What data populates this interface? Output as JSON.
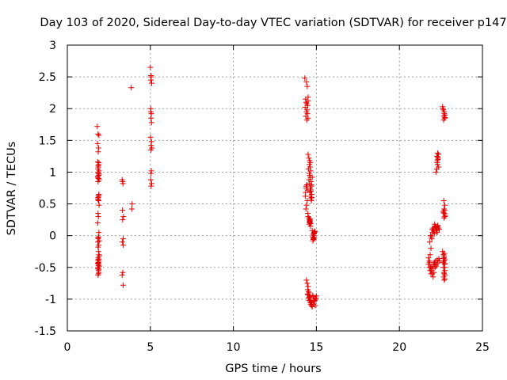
{
  "chart_data": {
    "type": "scatter",
    "title": "Day 103 of 2020, Sidereal Day-to-day VTEC variation (SDTVAR) for receiver p147",
    "xlabel": "GPS time / hours",
    "ylabel": "SDTVAR / TECUs",
    "xlim": [
      0,
      25
    ],
    "ylim": [
      -1.5,
      3
    ],
    "xticks": [
      0,
      5,
      10,
      15,
      20,
      25
    ],
    "yticks": [
      -1.5,
      -1,
      -0.5,
      0,
      0.5,
      1,
      1.5,
      2,
      2.5,
      3
    ],
    "xtick_labels": [
      "0",
      "5",
      "10",
      "15",
      "20",
      "25"
    ],
    "ytick_labels": [
      "-1.5",
      "-1",
      "-0.5",
      "0",
      "0.5",
      "1",
      "1.5",
      "2",
      "2.5",
      "3"
    ],
    "grid": true,
    "marker": "+",
    "color": "#e00000",
    "series": [
      {
        "name": "p147",
        "x": [
          1.8,
          1.85,
          1.9,
          1.82,
          1.88,
          1.86,
          1.83,
          1.9,
          1.87,
          1.84,
          1.91,
          1.86,
          1.89,
          1.83,
          1.87,
          1.92,
          1.85,
          1.9,
          1.88,
          1.86,
          1.84,
          1.89,
          1.91,
          1.85,
          1.87,
          1.83,
          1.9,
          1.88,
          1.86,
          1.92,
          1.84,
          1.89,
          1.85,
          1.88,
          1.91,
          1.86,
          1.83,
          1.9,
          1.87,
          1.85,
          1.89,
          1.92,
          1.86,
          1.84,
          1.88,
          1.9,
          1.87,
          1.85,
          1.89,
          1.86,
          1.83,
          1.91,
          1.88,
          1.86,
          1.9,
          1.84,
          1.87,
          1.89,
          1.85,
          1.92,
          1.88,
          1.86,
          3.3,
          3.35,
          3.32,
          3.38,
          3.33,
          3.36,
          3.31,
          3.37,
          3.34,
          3.3,
          3.36,
          3.33,
          3.85,
          3.9,
          3.88,
          5.0,
          5.05,
          5.03,
          5.08,
          5.02,
          5.06,
          5.04,
          5.07,
          5.01,
          5.05,
          5.09,
          5.03,
          5.06,
          5.04,
          5.02,
          5.08,
          5.05,
          5.03,
          5.07,
          5.04,
          14.3,
          14.4,
          14.45,
          14.35,
          14.5,
          14.42,
          14.38,
          14.48,
          14.32,
          14.44,
          14.4,
          14.46,
          14.36,
          14.5,
          14.42,
          14.38,
          14.47,
          14.33,
          14.45,
          14.41,
          14.37,
          14.49,
          14.43,
          14.39,
          14.5,
          14.35,
          14.5,
          14.55,
          14.6,
          14.58,
          14.62,
          14.52,
          14.65,
          14.57,
          14.6,
          14.63,
          14.55,
          14.68,
          14.58,
          14.7,
          14.62,
          14.66,
          14.6,
          14.72,
          14.65,
          14.68,
          14.7,
          14.63,
          14.75,
          14.67,
          14.72,
          14.7,
          14.5,
          14.55,
          14.58,
          14.6,
          14.62,
          14.57,
          14.65,
          14.6,
          14.63,
          14.58,
          14.66,
          14.61,
          14.75,
          14.8,
          14.78,
          14.82,
          14.85,
          14.79,
          14.83,
          14.87,
          14.81,
          14.9,
          14.84,
          14.88,
          14.86,
          14.92,
          14.4,
          14.45,
          14.5,
          14.48,
          14.52,
          14.55,
          14.47,
          14.58,
          14.53,
          14.6,
          14.56,
          14.62,
          14.5,
          14.65,
          14.58,
          14.7,
          14.62,
          14.75,
          14.68,
          14.8,
          14.72,
          14.85,
          14.78,
          14.9,
          14.82,
          14.95,
          14.88,
          15.0,
          14.93,
          14.98,
          21.75,
          21.8,
          21.85,
          21.9,
          21.82,
          21.95,
          21.88,
          22.0,
          21.93,
          22.05,
          21.98,
          22.1,
          22.03,
          22.15,
          22.08,
          22.2,
          22.12,
          22.25,
          22.18,
          22.3,
          22.22,
          22.35,
          22.28,
          22.4,
          22.32,
          21.75,
          21.82,
          21.88,
          21.93,
          21.98,
          22.03,
          22.08,
          22.12,
          22.18,
          22.22,
          22.28,
          22.32,
          22.38,
          22.42,
          21.8,
          21.85,
          21.9,
          21.95,
          22.0,
          22.05,
          22.1,
          22.15,
          22.2,
          22.2,
          22.25,
          22.3,
          22.28,
          22.33,
          22.26,
          22.35,
          22.3,
          22.32,
          22.27,
          22.36,
          22.31,
          22.6,
          22.65,
          22.7,
          22.68,
          22.72,
          22.66,
          22.74,
          22.7,
          22.62,
          22.75,
          22.67,
          22.73,
          22.69,
          22.64,
          22.71,
          22.76,
          22.68,
          22.72,
          22.66,
          22.74,
          22.6,
          22.65,
          22.7,
          22.68,
          22.72,
          22.66,
          22.74,
          22.7,
          22.67,
          22.73,
          22.69,
          22.75,
          22.71,
          22.64,
          22.72,
          22.68,
          22.74,
          22.7,
          22.66,
          22.73
        ],
        "y": [
          1.72,
          1.6,
          1.58,
          1.45,
          1.38,
          1.32,
          1.16,
          1.15,
          1.1,
          1.05,
          1.02,
          0.98,
          0.95,
          0.92,
          0.9,
          0.88,
          0.85,
          0.65,
          0.62,
          0.6,
          0.58,
          0.55,
          0.48,
          0.35,
          0.3,
          0.2,
          0.05,
          -0.02,
          -0.05,
          -0.08,
          -0.1,
          -0.15,
          -0.18,
          -0.25,
          -0.3,
          -0.35,
          -0.38,
          -0.4,
          -0.42,
          -0.44,
          -0.45,
          -0.48,
          -0.5,
          -0.52,
          -0.55,
          -0.58,
          -0.6,
          -0.62,
          1.12,
          1.08,
          0.93,
          0.97,
          0.63,
          0.56,
          -0.37,
          -0.43,
          -0.47,
          -0.53,
          -0.03,
          -0.32,
          0.9,
          1.0,
          0.88,
          0.82,
          0.4,
          0.3,
          0.25,
          -0.05,
          -0.1,
          -0.15,
          -0.58,
          -0.62,
          -0.78,
          0.85,
          2.33,
          0.5,
          0.42,
          2.65,
          2.5,
          2.45,
          2.4,
          2.0,
          1.92,
          1.85,
          1.78,
          1.55,
          1.42,
          1.38,
          1.35,
          1.02,
          0.98,
          0.88,
          0.82,
          0.78,
          1.95,
          1.48,
          2.52,
          2.48,
          2.42,
          2.35,
          2.15,
          2.12,
          2.08,
          2.1,
          2.05,
          2.02,
          1.98,
          1.95,
          1.92,
          1.88,
          1.85,
          1.82,
          0.78,
          0.72,
          0.62,
          0.55,
          0.48,
          0.42,
          0.35,
          0.8,
          0.75,
          2.18,
          0.68,
          1.28,
          1.22,
          1.18,
          1.12,
          1.08,
          1.05,
          1.02,
          0.98,
          0.95,
          0.92,
          0.88,
          0.85,
          0.82,
          0.78,
          0.75,
          0.72,
          0.68,
          0.65,
          0.62,
          0.58,
          0.55,
          1.15,
          0.92,
          0.7,
          0.6,
          0.8,
          0.3,
          0.28,
          0.25,
          0.22,
          0.2,
          0.18,
          0.15,
          0.24,
          0.26,
          0.21,
          0.19,
          0.23,
          0.08,
          0.02,
          -0.02,
          -0.05,
          0.05,
          -0.08,
          -0.03,
          0.04,
          -0.06,
          0.07,
          0.0,
          -0.04,
          0.03,
          0.06,
          -0.7,
          -0.75,
          -0.8,
          -0.85,
          -0.88,
          -0.9,
          -0.92,
          -0.95,
          -0.98,
          -1.0,
          -1.02,
          -1.05,
          -0.93,
          -1.08,
          -0.97,
          -1.1,
          -1.0,
          -1.12,
          -1.04,
          -0.96,
          -1.06,
          -1.0,
          -0.94,
          -1.02,
          -1.08,
          -0.98,
          -1.03,
          -0.95,
          -1.1,
          -1.0,
          -0.45,
          -0.4,
          -0.3,
          -0.2,
          -0.1,
          -0.05,
          0.0,
          0.05,
          -0.02,
          0.08,
          0.1,
          0.03,
          0.12,
          0.15,
          0.07,
          0.13,
          0.18,
          0.1,
          0.14,
          0.16,
          0.08,
          0.12,
          0.05,
          0.1,
          0.15,
          -0.35,
          -0.42,
          -0.5,
          -0.55,
          -0.6,
          -0.65,
          -0.58,
          -0.45,
          -0.4,
          -0.48,
          -0.38,
          -0.43,
          -0.36,
          -0.4,
          -0.5,
          -0.55,
          -0.6,
          -0.48,
          -0.52,
          -0.45,
          -0.42,
          -0.5,
          -0.46,
          1.0,
          1.05,
          1.12,
          1.18,
          1.22,
          1.25,
          1.28,
          1.3,
          1.2,
          1.15,
          1.08,
          1.24,
          2.03,
          1.98,
          1.92,
          1.88,
          1.85,
          1.82,
          1.9,
          1.95,
          2.0,
          1.86,
          0.55,
          0.48,
          0.42,
          0.38,
          0.35,
          0.32,
          0.28,
          0.4,
          0.36,
          0.3,
          -0.25,
          -0.3,
          -0.35,
          -0.4,
          -0.45,
          -0.5,
          -0.55,
          -0.6,
          -0.65,
          -0.68,
          -0.32,
          -0.38,
          -0.28,
          -0.42,
          -0.5,
          -0.58,
          -0.62,
          -0.7,
          -0.36,
          -0.44
        ]
      }
    ]
  }
}
